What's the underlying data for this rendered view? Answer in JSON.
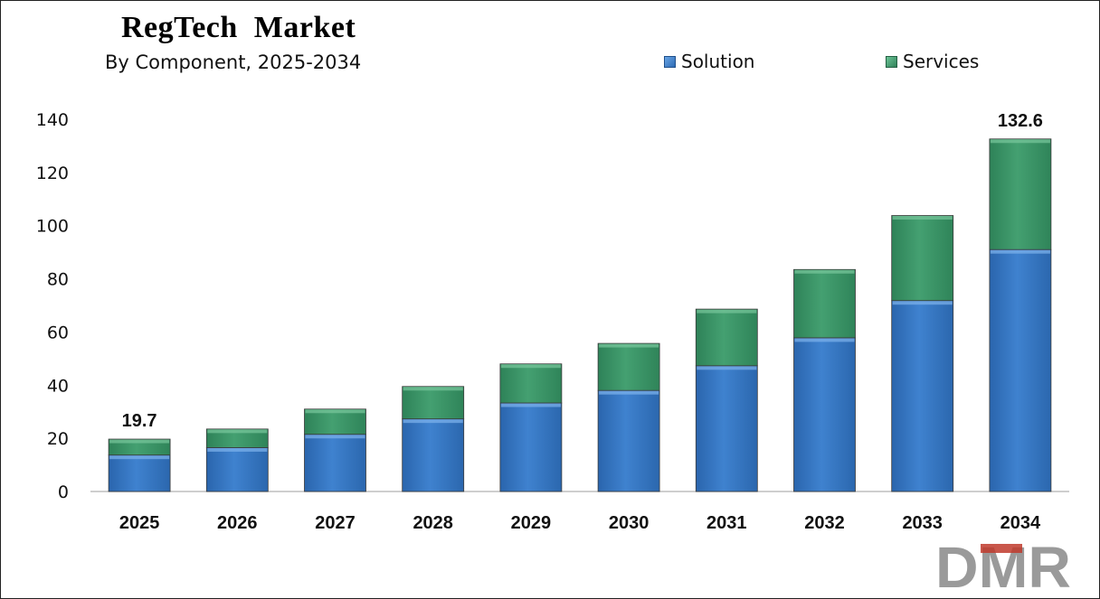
{
  "chart_data": {
    "type": "bar",
    "stacked": true,
    "title": "RegTech  Market",
    "subtitle": "By Component, 2025-2034",
    "categories": [
      "2025",
      "2026",
      "2027",
      "2028",
      "2029",
      "2030",
      "2031",
      "2032",
      "2033",
      "2034"
    ],
    "series": [
      {
        "name": "Solution",
        "color": "#3b7dc9",
        "values": [
          13.7,
          16.5,
          21.5,
          27.3,
          33.3,
          38.0,
          47.3,
          57.8,
          71.8,
          91.0
        ]
      },
      {
        "name": "Services",
        "color": "#3f9a6e",
        "values": [
          6.0,
          7.0,
          9.5,
          12.2,
          14.7,
          17.7,
          21.3,
          25.7,
          32.0,
          41.6
        ]
      }
    ],
    "data_labels": [
      {
        "category": "2025",
        "text": "19.7"
      },
      {
        "category": "2034",
        "text": "132.6"
      }
    ],
    "ylim": [
      0,
      140
    ],
    "yticks": [
      0,
      20,
      40,
      60,
      80,
      100,
      120,
      140
    ],
    "xlabel": "",
    "ylabel": "",
    "grid": false,
    "legend_position": "top-right"
  },
  "logo": {
    "text": "DMR"
  }
}
